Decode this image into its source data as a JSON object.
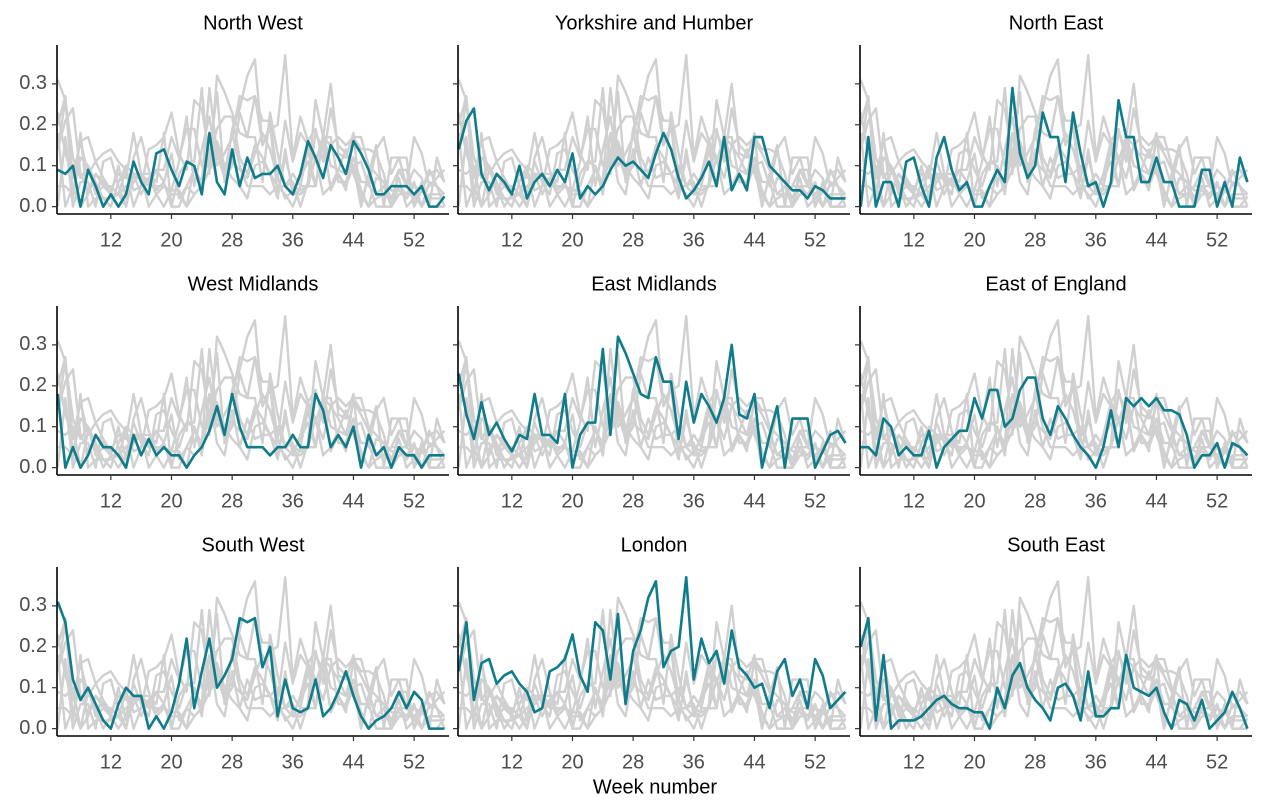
{
  "chart_data": {
    "type": "line",
    "facet": "series",
    "x_label": "Week number",
    "context_color": "#d0d0d0",
    "x": [
      5,
      6,
      7,
      8,
      9,
      10,
      11,
      12,
      13,
      14,
      15,
      16,
      17,
      18,
      19,
      20,
      21,
      22,
      23,
      24,
      25,
      26,
      27,
      28,
      29,
      30,
      31,
      32,
      33,
      34,
      35,
      36,
      37,
      38,
      39,
      40,
      41,
      42,
      43,
      44,
      45,
      46,
      47,
      48,
      49,
      50,
      51,
      52,
      53,
      54,
      55,
      56
    ],
    "xlim": [
      4.9,
      56.6
    ],
    "xticks": [
      12,
      20,
      28,
      36,
      44,
      52
    ],
    "ylim": [
      -0.018,
      0.395
    ],
    "yticks": [
      {
        "value": 0,
        "label": "0.0"
      },
      {
        "value": 0.1,
        "label": "0.1"
      },
      {
        "value": 0.2,
        "label": "0.2"
      },
      {
        "value": 0.3,
        "label": "0.3"
      }
    ],
    "series": [
      {
        "name": "North West",
        "color": "#0e7c8b",
        "values": [
          0.09,
          0.08,
          0.1,
          0.0,
          0.09,
          0.05,
          0.0,
          0.03,
          0.0,
          0.03,
          0.11,
          0.06,
          0.03,
          0.13,
          0.14,
          0.09,
          0.05,
          0.11,
          0.1,
          0.03,
          0.18,
          0.06,
          0.03,
          0.14,
          0.05,
          0.12,
          0.07,
          0.08,
          0.08,
          0.1,
          0.05,
          0.03,
          0.08,
          0.16,
          0.12,
          0.07,
          0.15,
          0.12,
          0.08,
          0.16,
          0.13,
          0.09,
          0.03,
          0.03,
          0.05,
          0.05,
          0.05,
          0.03,
          0.05,
          0.0,
          0.0,
          0.025
        ]
      },
      {
        "name": "Yorkshire and Humber",
        "color": "#0e7c8b",
        "values": [
          0.14,
          0.21,
          0.24,
          0.08,
          0.04,
          0.08,
          0.06,
          0.03,
          0.1,
          0.02,
          0.06,
          0.08,
          0.05,
          0.09,
          0.06,
          0.13,
          0.02,
          0.05,
          0.03,
          0.05,
          0.09,
          0.12,
          0.1,
          0.11,
          0.09,
          0.07,
          0.13,
          0.18,
          0.14,
          0.07,
          0.02,
          0.04,
          0.07,
          0.11,
          0.05,
          0.17,
          0.04,
          0.08,
          0.04,
          0.17,
          0.17,
          0.1,
          0.08,
          0.06,
          0.04,
          0.04,
          0.02,
          0.05,
          0.04,
          0.02,
          0.02,
          0.02
        ]
      },
      {
        "name": "North East",
        "color": "#0e7c8b",
        "values": [
          0.0,
          0.17,
          0.0,
          0.06,
          0.06,
          0.0,
          0.11,
          0.12,
          0.05,
          0.0,
          0.12,
          0.17,
          0.09,
          0.04,
          0.06,
          0.0,
          0.0,
          0.05,
          0.09,
          0.06,
          0.29,
          0.13,
          0.07,
          0.1,
          0.23,
          0.17,
          0.17,
          0.06,
          0.23,
          0.13,
          0.05,
          0.06,
          0.0,
          0.06,
          0.26,
          0.17,
          0.17,
          0.06,
          0.06,
          0.12,
          0.06,
          0.06,
          0.0,
          0.0,
          0.0,
          0.09,
          0.09,
          0.0,
          0.06,
          0.0,
          0.12,
          0.06
        ]
      },
      {
        "name": "West Midlands",
        "color": "#0e7c8b",
        "values": [
          0.18,
          0.0,
          0.05,
          0.0,
          0.03,
          0.08,
          0.05,
          0.05,
          0.03,
          0.0,
          0.08,
          0.03,
          0.07,
          0.03,
          0.05,
          0.03,
          0.03,
          0.0,
          0.03,
          0.05,
          0.09,
          0.15,
          0.08,
          0.18,
          0.1,
          0.05,
          0.05,
          0.05,
          0.03,
          0.05,
          0.05,
          0.08,
          0.05,
          0.05,
          0.18,
          0.14,
          0.05,
          0.08,
          0.05,
          0.1,
          0.0,
          0.08,
          0.03,
          0.05,
          0.0,
          0.05,
          0.03,
          0.03,
          0.0,
          0.03,
          0.03,
          0.03
        ]
      },
      {
        "name": "East Midlands",
        "color": "#0e7c8b",
        "values": [
          0.23,
          0.13,
          0.07,
          0.16,
          0.08,
          0.11,
          0.07,
          0.04,
          0.08,
          0.07,
          0.18,
          0.08,
          0.08,
          0.06,
          0.18,
          0.0,
          0.08,
          0.11,
          0.11,
          0.29,
          0.08,
          0.32,
          0.28,
          0.23,
          0.18,
          0.17,
          0.27,
          0.21,
          0.21,
          0.07,
          0.21,
          0.11,
          0.18,
          0.15,
          0.11,
          0.17,
          0.3,
          0.13,
          0.12,
          0.18,
          0.0,
          0.08,
          0.15,
          0.0,
          0.12,
          0.12,
          0.12,
          0.0,
          0.04,
          0.08,
          0.09,
          0.06
        ]
      },
      {
        "name": "East of England",
        "color": "#0e7c8b",
        "values": [
          0.05,
          0.05,
          0.03,
          0.12,
          0.1,
          0.03,
          0.05,
          0.03,
          0.03,
          0.09,
          0.0,
          0.05,
          0.07,
          0.09,
          0.09,
          0.17,
          0.12,
          0.19,
          0.19,
          0.1,
          0.12,
          0.19,
          0.22,
          0.22,
          0.12,
          0.08,
          0.15,
          0.12,
          0.08,
          0.05,
          0.03,
          0.0,
          0.05,
          0.14,
          0.05,
          0.17,
          0.15,
          0.17,
          0.15,
          0.17,
          0.14,
          0.14,
          0.13,
          0.08,
          0.0,
          0.03,
          0.03,
          0.06,
          0.0,
          0.06,
          0.05,
          0.03
        ]
      },
      {
        "name": "South West",
        "color": "#0e7c8b",
        "values": [
          0.31,
          0.26,
          0.12,
          0.07,
          0.1,
          0.06,
          0.02,
          0.0,
          0.06,
          0.1,
          0.08,
          0.08,
          0.0,
          0.03,
          0.0,
          0.04,
          0.11,
          0.22,
          0.05,
          0.14,
          0.22,
          0.1,
          0.13,
          0.17,
          0.27,
          0.26,
          0.27,
          0.15,
          0.2,
          0.03,
          0.12,
          0.05,
          0.04,
          0.05,
          0.12,
          0.03,
          0.05,
          0.09,
          0.14,
          0.08,
          0.03,
          0.0,
          0.02,
          0.03,
          0.05,
          0.09,
          0.05,
          0.09,
          0.07,
          0.0,
          0.0,
          0.0
        ]
      },
      {
        "name": "London",
        "color": "#0e7c8b",
        "values": [
          0.14,
          0.26,
          0.07,
          0.16,
          0.17,
          0.11,
          0.13,
          0.14,
          0.11,
          0.09,
          0.04,
          0.05,
          0.14,
          0.15,
          0.17,
          0.23,
          0.13,
          0.09,
          0.26,
          0.24,
          0.12,
          0.28,
          0.06,
          0.19,
          0.24,
          0.32,
          0.36,
          0.15,
          0.19,
          0.2,
          0.37,
          0.12,
          0.22,
          0.16,
          0.19,
          0.11,
          0.24,
          0.15,
          0.13,
          0.1,
          0.11,
          0.05,
          0.14,
          0.17,
          0.08,
          0.12,
          0.05,
          0.17,
          0.13,
          0.05,
          0.07,
          0.09
        ]
      },
      {
        "name": "South East",
        "color": "#0e7c8b",
        "values": [
          0.2,
          0.27,
          0.02,
          0.18,
          0.0,
          0.02,
          0.02,
          0.02,
          0.03,
          0.05,
          0.07,
          0.08,
          0.06,
          0.05,
          0.05,
          0.04,
          0.04,
          0.0,
          0.1,
          0.05,
          0.13,
          0.16,
          0.1,
          0.07,
          0.05,
          0.02,
          0.1,
          0.11,
          0.08,
          0.02,
          0.14,
          0.03,
          0.03,
          0.05,
          0.05,
          0.18,
          0.1,
          0.09,
          0.08,
          0.1,
          0.04,
          0.0,
          0.07,
          0.06,
          0.02,
          0.07,
          0.0,
          0.02,
          0.04,
          0.09,
          0.05,
          0.0
        ]
      }
    ]
  }
}
